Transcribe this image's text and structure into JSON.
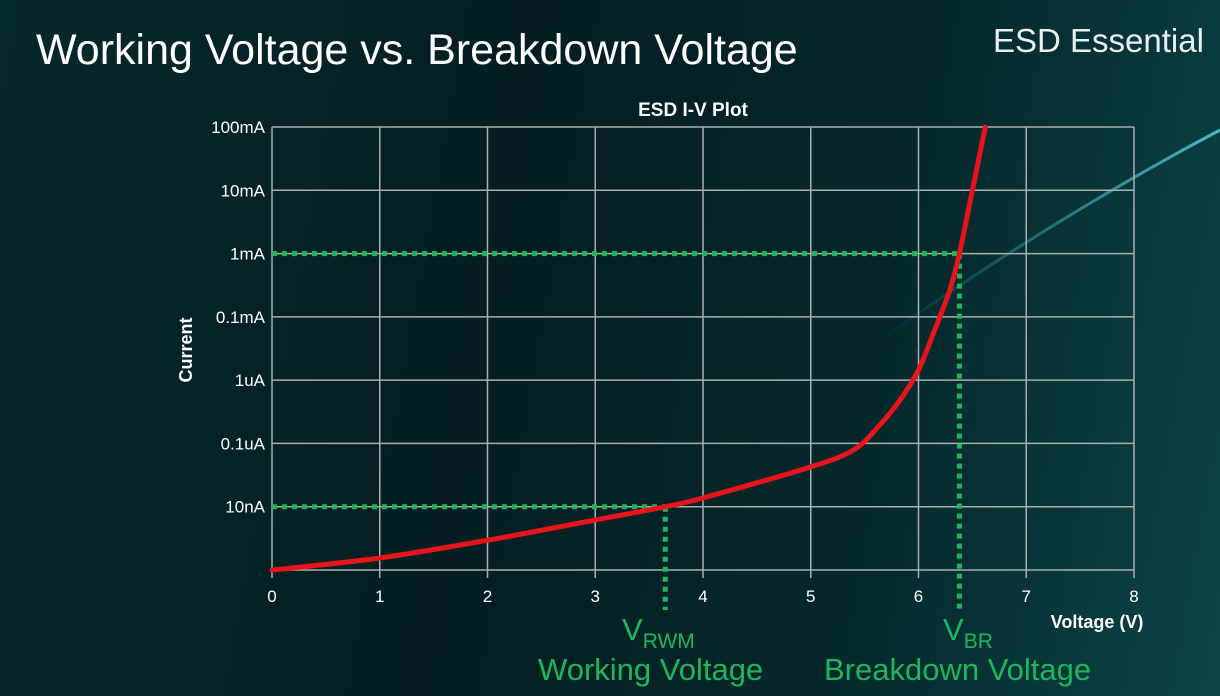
{
  "slide": {
    "title": "Working Voltage vs. Breakdown Voltage",
    "brand": "ESD Essential",
    "vrwm_main": "V",
    "vrwm_sub": "RWM",
    "vrwm_caption": "Working Voltage",
    "vbr_main": "V",
    "vbr_sub": "BR",
    "vbr_caption": "Breakdown Voltage"
  },
  "colors": {
    "curve": "#e8141c",
    "marker": "#1fb55a",
    "grid": "#a9afaf",
    "background": "#05242a"
  },
  "chart_data": {
    "type": "line",
    "title": "ESD I-V Plot",
    "xlabel": "Voltage (V)",
    "ylabel": "Current",
    "xlim": [
      0,
      8
    ],
    "x_ticks": [
      "0",
      "1",
      "2",
      "3",
      "4",
      "5",
      "6",
      "7",
      "8"
    ],
    "y_scale": "log (one gridline per labeled level)",
    "y_ticks": [
      "",
      "10nA",
      "0.1uA",
      "1uA",
      "0.1mA",
      "1mA",
      "10mA",
      "100mA"
    ],
    "grid": true,
    "series": [
      {
        "x": [
          0,
          1.0,
          2.0,
          3.0,
          3.65,
          4.0,
          5.0,
          5.4,
          5.64,
          5.83,
          6.0,
          6.15,
          6.29,
          6.38,
          6.5,
          6.62
        ],
        "y_level": [
          0,
          0.19,
          0.47,
          0.79,
          1.0,
          1.14,
          1.63,
          1.9,
          2.29,
          2.69,
          3.16,
          3.79,
          4.42,
          5.0,
          6.0,
          7.0
        ]
      }
    ],
    "markers": [
      {
        "label": "VRWM",
        "x": 3.65,
        "y": "10nA"
      },
      {
        "label": "VBR",
        "x": 6.38,
        "y": "1mA"
      }
    ]
  }
}
